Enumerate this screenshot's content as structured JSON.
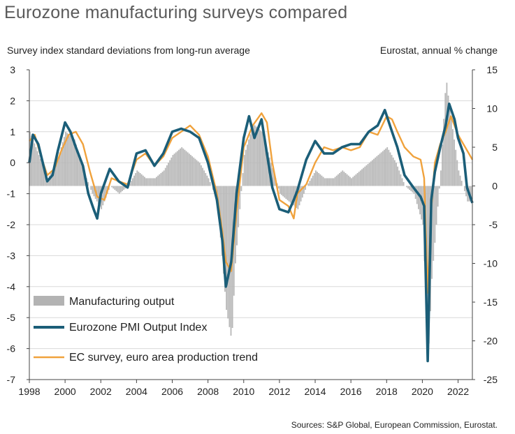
{
  "title": "Eurozone manufacturing surveys compared",
  "source": "Sources: S&P Global, European Commission, Eurostat.",
  "chart_data": {
    "type": "line",
    "left_axis_label": "Survey index standard deviations from long-run average",
    "right_axis_label": "Eurostat, annual % change",
    "left_ylim": [
      -7,
      3
    ],
    "left_ticks": [
      "3",
      "2",
      "1",
      "0",
      "-1",
      "-2",
      "-3",
      "-4",
      "-5",
      "-6",
      "-7"
    ],
    "right_ylim": [
      -25,
      15
    ],
    "right_ticks": [
      "15",
      "10",
      "5",
      "0",
      "-5",
      "-10",
      "-15",
      "-20",
      "-25"
    ],
    "xlim": [
      1998,
      2022.8
    ],
    "x_ticks": [
      "1998",
      "2000",
      "2002",
      "2004",
      "2006",
      "2008",
      "2010",
      "2012",
      "2014",
      "2016",
      "2018",
      "2020",
      "2022"
    ],
    "legend": [
      {
        "name": "Manufacturing output",
        "color": "#b3b3b3",
        "kind": "bar"
      },
      {
        "name": "Eurozone PMI Output Index",
        "color": "#1b5e78",
        "kind": "line"
      },
      {
        "name": "EC survey, euro area production trend",
        "color": "#f0a23c",
        "kind": "line"
      }
    ],
    "series": [
      {
        "name": "Manufacturing output",
        "axis": "right",
        "x": [
          1998.0,
          1998.5,
          1999.0,
          1999.5,
          2000.0,
          2000.5,
          2001.0,
          2001.5,
          2002.0,
          2002.5,
          2003.0,
          2003.5,
          2004.0,
          2004.5,
          2005.0,
          2005.5,
          2006.0,
          2006.5,
          2007.0,
          2007.5,
          2008.0,
          2008.5,
          2009.0,
          2009.3,
          2009.5,
          2010.0,
          2010.5,
          2011.0,
          2011.5,
          2012.0,
          2012.5,
          2013.0,
          2013.5,
          2014.0,
          2014.5,
          2015.0,
          2015.5,
          2016.0,
          2016.5,
          2017.0,
          2017.5,
          2018.0,
          2018.5,
          2019.0,
          2019.5,
          2020.0,
          2020.3,
          2020.5,
          2021.0,
          2021.3,
          2021.5,
          2022.0,
          2022.5
        ],
        "values": [
          7,
          4,
          1,
          3,
          7,
          6,
          2,
          -1,
          -3,
          0,
          -1,
          0,
          2,
          1,
          1,
          2,
          4,
          5,
          4,
          3,
          1,
          -2,
          -16,
          -20,
          -10,
          4,
          8,
          7,
          3,
          -1,
          -2,
          -3,
          0,
          2,
          1,
          1,
          2,
          1,
          2,
          3,
          4,
          5,
          3,
          0,
          -1,
          -5,
          -22,
          -12,
          2,
          14,
          10,
          2,
          -2
        ]
      },
      {
        "name": "Eurozone PMI Output Index",
        "axis": "left",
        "x": [
          1998.0,
          1998.2,
          1998.5,
          1999.0,
          1999.3,
          1999.6,
          2000.0,
          2000.3,
          2000.6,
          2001.0,
          2001.3,
          2001.6,
          2001.8,
          2002.0,
          2002.5,
          2003.0,
          2003.5,
          2004.0,
          2004.5,
          2005.0,
          2005.5,
          2006.0,
          2006.5,
          2007.0,
          2007.5,
          2008.0,
          2008.5,
          2008.8,
          2009.0,
          2009.3,
          2009.6,
          2010.0,
          2010.3,
          2010.6,
          2011.0,
          2011.3,
          2011.6,
          2012.0,
          2012.5,
          2012.8,
          2013.0,
          2013.5,
          2014.0,
          2014.5,
          2015.0,
          2015.5,
          2016.0,
          2016.5,
          2017.0,
          2017.5,
          2017.9,
          2018.3,
          2018.6,
          2019.0,
          2019.5,
          2019.9,
          2020.1,
          2020.3,
          2020.5,
          2020.7,
          2021.0,
          2021.3,
          2021.5,
          2021.8,
          2022.0,
          2022.3,
          2022.5,
          2022.8
        ],
        "values": [
          0.0,
          0.9,
          0.6,
          -0.6,
          -0.4,
          0.4,
          1.3,
          1.0,
          0.5,
          -0.1,
          -1.0,
          -1.5,
          -1.8,
          -1.0,
          -0.2,
          -0.6,
          -0.8,
          0.3,
          0.4,
          -0.1,
          0.3,
          1.0,
          1.1,
          1.0,
          0.8,
          0.0,
          -1.2,
          -2.5,
          -4.0,
          -3.2,
          -1.0,
          0.8,
          1.5,
          0.8,
          1.4,
          0.3,
          -0.8,
          -1.5,
          -1.6,
          -1.2,
          -0.9,
          0.1,
          0.7,
          0.3,
          0.3,
          0.5,
          0.6,
          0.6,
          1.0,
          1.2,
          1.7,
          1.0,
          0.5,
          -0.4,
          -0.8,
          -1.1,
          -1.4,
          -6.4,
          -1.2,
          -0.3,
          0.5,
          1.2,
          1.9,
          1.4,
          0.8,
          0.3,
          -0.8,
          -1.3
        ]
      },
      {
        "name": "EC survey, euro area production trend",
        "axis": "left",
        "x": [
          1998.0,
          1998.3,
          1998.6,
          1999.0,
          1999.4,
          1999.8,
          2000.2,
          2000.6,
          2001.0,
          2001.4,
          2001.8,
          2002.2,
          2002.6,
          2003.0,
          2003.5,
          2004.0,
          2004.5,
          2005.0,
          2005.5,
          2006.0,
          2006.5,
          2007.0,
          2007.5,
          2008.0,
          2008.5,
          2008.8,
          2009.0,
          2009.3,
          2009.6,
          2010.0,
          2010.5,
          2011.0,
          2011.3,
          2011.6,
          2012.0,
          2012.5,
          2012.8,
          2013.0,
          2013.5,
          2014.0,
          2014.5,
          2015.0,
          2015.5,
          2016.0,
          2016.5,
          2017.0,
          2017.5,
          2018.0,
          2018.3,
          2018.6,
          2019.0,
          2019.5,
          2019.9,
          2020.1,
          2020.3,
          2020.5,
          2020.7,
          2021.0,
          2021.3,
          2021.6,
          2022.0,
          2022.3,
          2022.6,
          2022.8
        ],
        "values": [
          0.7,
          0.9,
          0.3,
          -0.4,
          -0.2,
          0.4,
          0.9,
          1.0,
          0.6,
          -0.3,
          -1.1,
          -1.2,
          -0.5,
          -0.6,
          -0.7,
          0.1,
          0.3,
          -0.1,
          0.2,
          0.8,
          1.0,
          1.2,
          0.9,
          0.2,
          -1.0,
          -2.2,
          -3.2,
          -3.5,
          -1.6,
          0.5,
          1.2,
          1.6,
          1.3,
          0.0,
          -1.2,
          -1.4,
          -1.8,
          -1.0,
          -0.7,
          0.0,
          0.5,
          0.4,
          0.5,
          0.4,
          0.5,
          1.0,
          0.9,
          1.5,
          1.4,
          1.0,
          0.5,
          0.2,
          0.1,
          -0.5,
          -4.2,
          -1.5,
          0.0,
          0.6,
          1.0,
          1.5,
          0.9,
          0.6,
          0.3,
          0.1
        ]
      }
    ]
  }
}
